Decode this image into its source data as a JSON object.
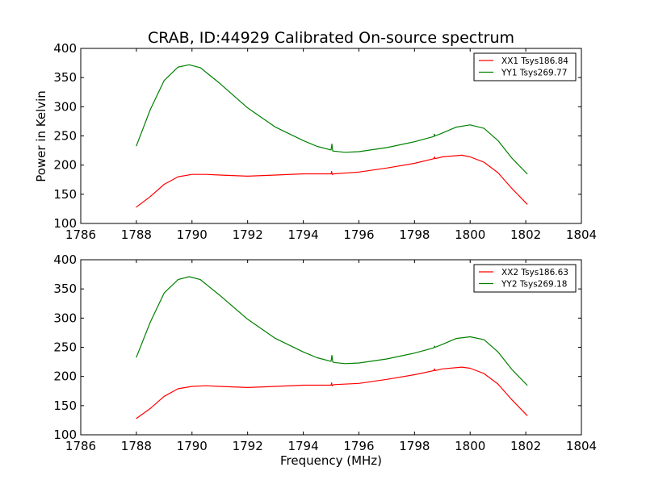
{
  "chart_data": {
    "type": "line",
    "title": "CRAB, ID:44929 Calibrated On-source spectrum",
    "xlabel": "Frequency (MHz)",
    "ylabel": "Power in Kelvin",
    "colors": {
      "XX": "#ff0000",
      "YY": "#008000"
    },
    "subplots": [
      {
        "xlim": [
          1786,
          1804
        ],
        "ylim": [
          100,
          400
        ],
        "xticks": [
          "1786",
          "1788",
          "1790",
          "1792",
          "1794",
          "1796",
          "1798",
          "1800",
          "1802",
          "1804"
        ],
        "yticks": [
          "100",
          "150",
          "200",
          "250",
          "300",
          "350",
          "400"
        ],
        "legend_position": "top-right",
        "series": [
          {
            "name": "XX1 Tsys186.84",
            "color": "#ff0000",
            "x": [
              1788.0,
              1788.5,
              1789.0,
              1789.5,
              1790.0,
              1790.5,
              1791.0,
              1792.0,
              1793.0,
              1794.0,
              1795.0,
              1795.02,
              1795.04,
              1795.1,
              1796.0,
              1797.0,
              1798.0,
              1798.7,
              1798.72,
              1798.74,
              1799.0,
              1799.7,
              1800.0,
              1800.5,
              1801.0,
              1801.5,
              1802.05
            ],
            "y": [
              128,
              146,
              167,
              180,
              184,
              184,
              183,
              181,
              183,
              185,
              185,
              189,
              184,
              185,
              188,
              195,
              203,
              211,
              214,
              211,
              214,
              217,
              214,
              205,
              187,
              160,
              133
            ]
          },
          {
            "name": "YY1 Tsys269.77",
            "color": "#008000",
            "x": [
              1788.0,
              1788.5,
              1789.0,
              1789.5,
              1789.9,
              1790.3,
              1791.0,
              1792.0,
              1793.0,
              1794.0,
              1794.5,
              1795.0,
              1795.03,
              1795.06,
              1795.1,
              1795.5,
              1796.0,
              1797.0,
              1798.0,
              1798.7,
              1798.72,
              1798.74,
              1799.0,
              1799.5,
              1800.0,
              1800.5,
              1801.0,
              1801.5,
              1802.05
            ],
            "y": [
              233,
              295,
              345,
              368,
              372,
              367,
              340,
              298,
              265,
              242,
              232,
              226,
              236,
              224,
              224,
              222,
              223,
              230,
              240,
              249,
              253,
              250,
              255,
              265,
              269,
              263,
              242,
              212,
              185
            ]
          }
        ]
      },
      {
        "xlim": [
          1786,
          1804
        ],
        "ylim": [
          100,
          400
        ],
        "xticks": [
          "1786",
          "1788",
          "1790",
          "1792",
          "1794",
          "1796",
          "1798",
          "1800",
          "1802",
          "1804"
        ],
        "yticks": [
          "100",
          "150",
          "200",
          "250",
          "300",
          "350",
          "400"
        ],
        "legend_position": "top-right",
        "series": [
          {
            "name": "XX2 Tsys186.63",
            "color": "#ff0000",
            "x": [
              1788.0,
              1788.5,
              1789.0,
              1789.5,
              1790.0,
              1790.5,
              1791.0,
              1792.0,
              1793.0,
              1794.0,
              1795.0,
              1795.02,
              1795.04,
              1795.1,
              1796.0,
              1797.0,
              1798.0,
              1798.7,
              1798.72,
              1798.74,
              1799.0,
              1799.7,
              1800.0,
              1800.5,
              1801.0,
              1801.5,
              1802.05
            ],
            "y": [
              128,
              145,
              166,
              179,
              183,
              184,
              183,
              181,
              183,
              185,
              185,
              189,
              184,
              186,
              188,
              195,
              203,
              210,
              213,
              210,
              213,
              216,
              214,
              205,
              187,
              160,
              133
            ]
          },
          {
            "name": "YY2 Tsys269.18",
            "color": "#008000",
            "x": [
              1788.0,
              1788.5,
              1789.0,
              1789.5,
              1789.9,
              1790.3,
              1791.0,
              1792.0,
              1793.0,
              1794.0,
              1794.5,
              1795.0,
              1795.03,
              1795.06,
              1795.1,
              1795.5,
              1796.0,
              1797.0,
              1798.0,
              1798.7,
              1798.72,
              1798.74,
              1799.0,
              1799.5,
              1800.0,
              1800.5,
              1801.0,
              1801.5,
              1802.05
            ],
            "y": [
              233,
              293,
              343,
              366,
              371,
              366,
              339,
              298,
              265,
              242,
              232,
              226,
              236,
              225,
              224,
              222,
              223,
              230,
              240,
              249,
              252,
              250,
              255,
              265,
              268,
              263,
              242,
              212,
              185
            ]
          }
        ]
      }
    ]
  }
}
